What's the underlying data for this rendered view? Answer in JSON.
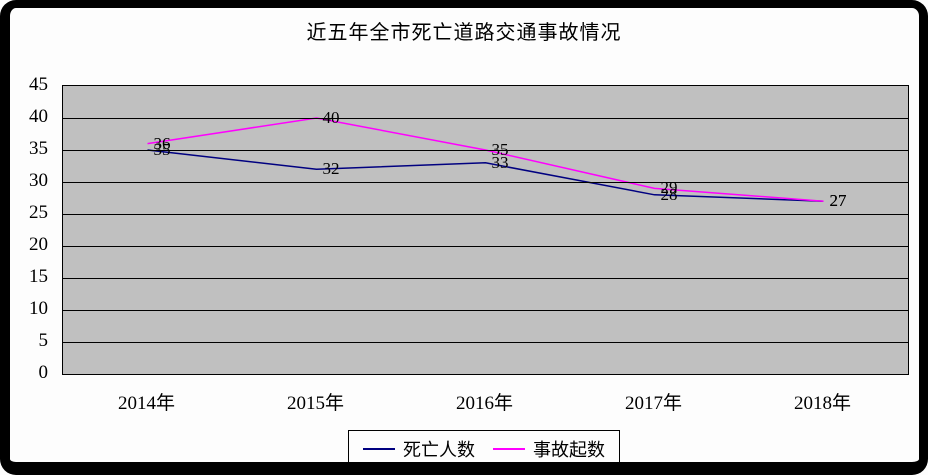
{
  "title": "近五年全市死亡道路交通事故情况",
  "chart_data": {
    "type": "line",
    "title": "近五年全市死亡道路交通事故情况",
    "categories": [
      "2014年",
      "2015年",
      "2016年",
      "2017年",
      "2018年"
    ],
    "series": [
      {
        "name": "死亡人数",
        "color": "#000080",
        "values": [
          35,
          32,
          33,
          28,
          27
        ]
      },
      {
        "name": "事故起数",
        "color": "#ff00ff",
        "values": [
          36,
          40,
          35,
          29,
          27
        ]
      }
    ],
    "ylim": [
      0,
      45
    ],
    "ytick_step": 5,
    "yticks": [
      45,
      40,
      35,
      30,
      25,
      20,
      15,
      10,
      5,
      0
    ],
    "grid": "horizontal",
    "data_labels": true,
    "legend_position": "bottom",
    "plot_background": "#c0c0c0",
    "frame_color": "#000000"
  }
}
